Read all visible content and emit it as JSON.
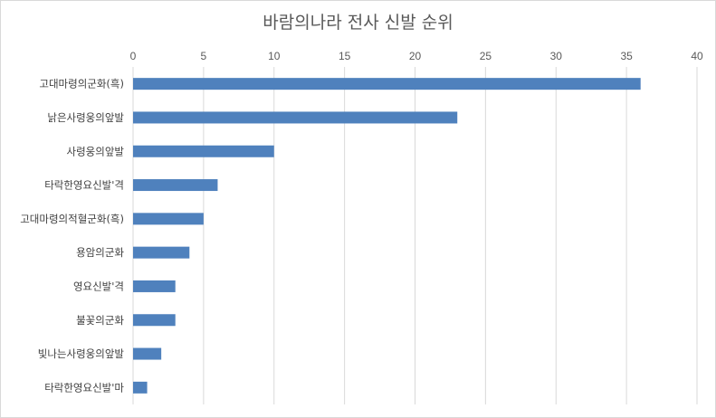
{
  "chart_data": {
    "type": "bar",
    "orientation": "horizontal",
    "title": "바람의나라 전사 신발 순위",
    "xlabel": "",
    "ylabel": "",
    "xlim": [
      0,
      40
    ],
    "xticks": [
      0,
      5,
      10,
      15,
      20,
      25,
      30,
      35,
      40
    ],
    "x_axis_position": "top",
    "grid": true,
    "legend": "none",
    "bar_color": "#4f81bd",
    "categories": [
      "고대마령의군화(흑)",
      "낡은사령웅의앞발",
      "사령웅의앞발",
      "타락한영요신발'격",
      "고대마령의적혈군화(흑)",
      "용암의군화",
      "영요신발'격",
      "불꽃의군화",
      "빛나는사령웅의앞발",
      "타락한영요신발'마"
    ],
    "values": [
      36,
      23,
      10,
      6,
      5,
      4,
      3,
      3,
      2,
      1
    ]
  }
}
